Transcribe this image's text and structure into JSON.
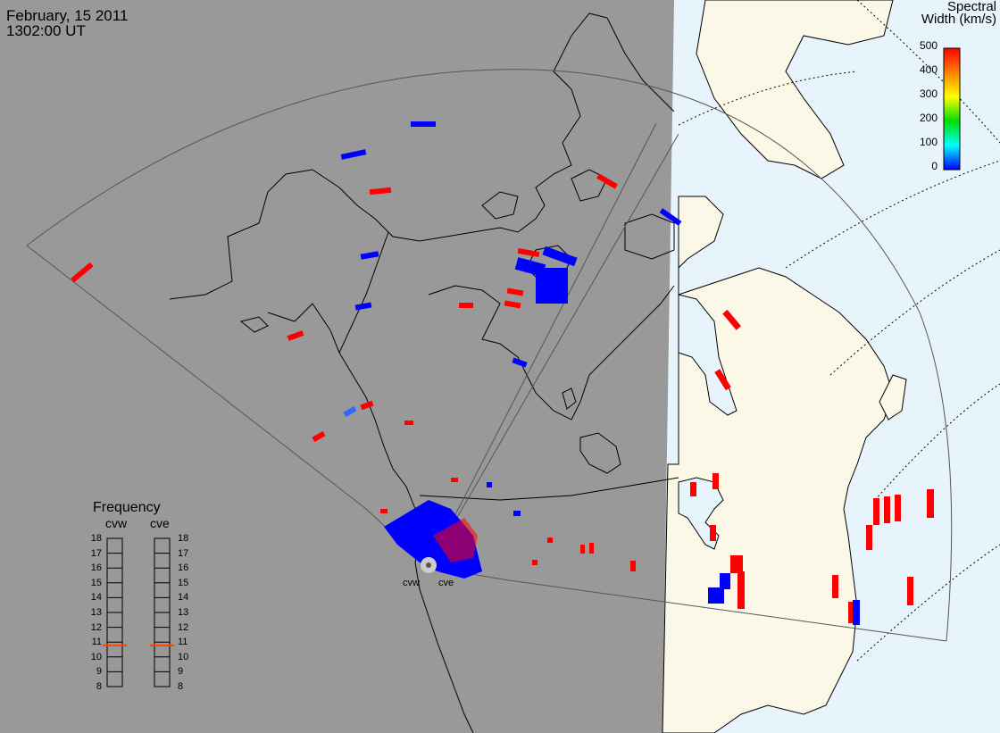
{
  "header": {
    "date": "February, 15 2011",
    "time": "1302:00 UT"
  },
  "colorbar": {
    "title_line1": "Spectral",
    "title_line2": "Width (km/s)",
    "ticks": [
      "500",
      "400",
      "300",
      "200",
      "100",
      "0"
    ],
    "stops": [
      "#ff0000",
      "#ff8000",
      "#ffff00",
      "#00dd00",
      "#00ffff",
      "#0000ff"
    ]
  },
  "frequency": {
    "title": "Frequency",
    "radar_west": "cvw",
    "radar_east": "cve",
    "scale": [
      "18",
      "17",
      "16",
      "15",
      "14",
      "13",
      "12",
      "11",
      "10",
      "9",
      "8"
    ],
    "cvw_value_mhz": 10.8,
    "cve_value_mhz": 10.8
  },
  "sites": {
    "west": "cvw",
    "east": "cve"
  },
  "colors": {
    "night": "#999999",
    "day_land": "#fbf8e8",
    "day_ocean": "#e8f4fb",
    "low_width": "#0000ff",
    "high_width": "#ff0000",
    "frequency_marker": "#ff4400"
  }
}
